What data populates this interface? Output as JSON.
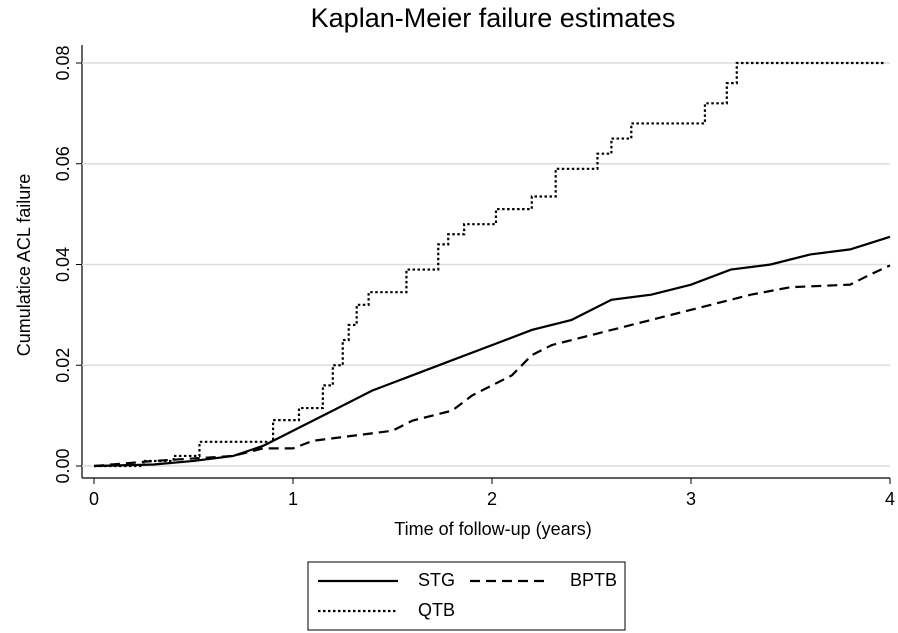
{
  "chart_data": {
    "type": "line",
    "title": "Kaplan-Meier failure estimates",
    "xlabel": "Time of follow-up (years)",
    "ylabel": "Cumulatice ACL failure",
    "xlim": [
      0,
      4
    ],
    "xticks": [
      0,
      1,
      2,
      3,
      4
    ],
    "ylim": [
      0,
      0.08
    ],
    "yticks": [
      {
        "value": 0,
        "label": "0.00"
      },
      {
        "value": 0.02,
        "label": "0.02"
      },
      {
        "value": 0.04,
        "label": "0.04"
      },
      {
        "value": 0.06,
        "label": "0.06"
      },
      {
        "value": 0.08,
        "label": "0.08"
      }
    ],
    "grid": true,
    "legend": "bottom",
    "series": [
      {
        "name": "STG",
        "color": "#000000",
        "dash": "solid",
        "x": [
          0,
          0.3,
          0.5,
          0.7,
          0.85,
          1,
          1.2,
          1.4,
          1.6,
          1.8,
          2,
          2.2,
          2.4,
          2.6,
          2.8,
          3,
          3.2,
          3.4,
          3.6,
          3.8,
          4
        ],
        "values": [
          0,
          0.0003,
          0.001,
          0.002,
          0.004,
          0.007,
          0.011,
          0.015,
          0.018,
          0.021,
          0.024,
          0.027,
          0.029,
          0.033,
          0.034,
          0.036,
          0.039,
          0.04,
          0.042,
          0.043,
          0.0455
        ]
      },
      {
        "name": "BPTB",
        "color": "#000000",
        "dash": "dashed",
        "x": [
          0,
          0.3,
          0.5,
          0.7,
          0.85,
          1,
          1.1,
          1.3,
          1.5,
          1.6,
          1.8,
          1.9,
          2,
          2.1,
          2.2,
          2.3,
          2.5,
          2.7,
          2.9,
          3.1,
          3.3,
          3.5,
          3.8,
          3.9,
          4
        ],
        "values": [
          0,
          0.001,
          0.0015,
          0.002,
          0.0035,
          0.0035,
          0.005,
          0.006,
          0.007,
          0.009,
          0.011,
          0.014,
          0.016,
          0.018,
          0.022,
          0.024,
          0.026,
          0.028,
          0.03,
          0.032,
          0.034,
          0.0355,
          0.036,
          0.038,
          0.0398
        ]
      },
      {
        "name": "QTB",
        "color": "#000000",
        "dash": "dotted",
        "x": [
          0,
          0.25,
          0.25,
          0.4,
          0.4,
          0.53,
          0.53,
          0.9,
          0.9,
          1.03,
          1.03,
          1.15,
          1.15,
          1.2,
          1.2,
          1.25,
          1.25,
          1.28,
          1.28,
          1.32,
          1.32,
          1.38,
          1.38,
          1.57,
          1.57,
          1.73,
          1.73,
          1.78,
          1.78,
          1.86,
          1.86,
          2.02,
          2.02,
          2.2,
          2.2,
          2.32,
          2.32,
          2.53,
          2.53,
          2.6,
          2.6,
          2.7,
          2.7,
          3.07,
          3.07,
          3.18,
          3.18,
          3.23,
          3.23,
          3.97
        ],
        "values": [
          0,
          0,
          0.001,
          0.001,
          0.002,
          0.002,
          0.0048,
          0.0048,
          0.0091,
          0.0091,
          0.0115,
          0.0115,
          0.016,
          0.016,
          0.02,
          0.02,
          0.025,
          0.025,
          0.028,
          0.028,
          0.032,
          0.032,
          0.0345,
          0.0345,
          0.039,
          0.039,
          0.044,
          0.044,
          0.046,
          0.046,
          0.048,
          0.048,
          0.051,
          0.051,
          0.0535,
          0.0535,
          0.059,
          0.059,
          0.062,
          0.062,
          0.065,
          0.065,
          0.068,
          0.068,
          0.072,
          0.072,
          0.076,
          0.076,
          0.08,
          0.08
        ]
      }
    ]
  }
}
